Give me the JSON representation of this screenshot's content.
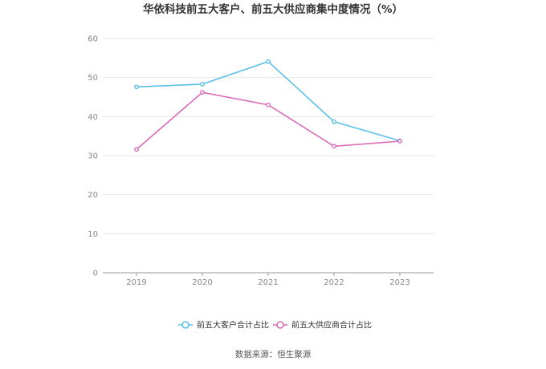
{
  "chart_data": {
    "type": "line",
    "title": "华依科技前五大客户、前五大供应商集中度情况（%）",
    "x": [
      "2019",
      "2020",
      "2021",
      "2022",
      "2023"
    ],
    "ylim": [
      0,
      60
    ],
    "yticks": [
      0,
      10,
      20,
      30,
      40,
      50,
      60
    ],
    "grid": true,
    "legend_position": "bottom",
    "series": [
      {
        "name": "前五大客户合计占比",
        "values": [
          47.6,
          48.3,
          54.1,
          38.7,
          33.8
        ],
        "color": "#5bc0eb"
      },
      {
        "name": "前五大供应商合计占比",
        "values": [
          31.6,
          46.2,
          43.0,
          32.4,
          33.7
        ],
        "color": "#d96cb8"
      }
    ]
  },
  "source": "数据来源：恒生聚源"
}
